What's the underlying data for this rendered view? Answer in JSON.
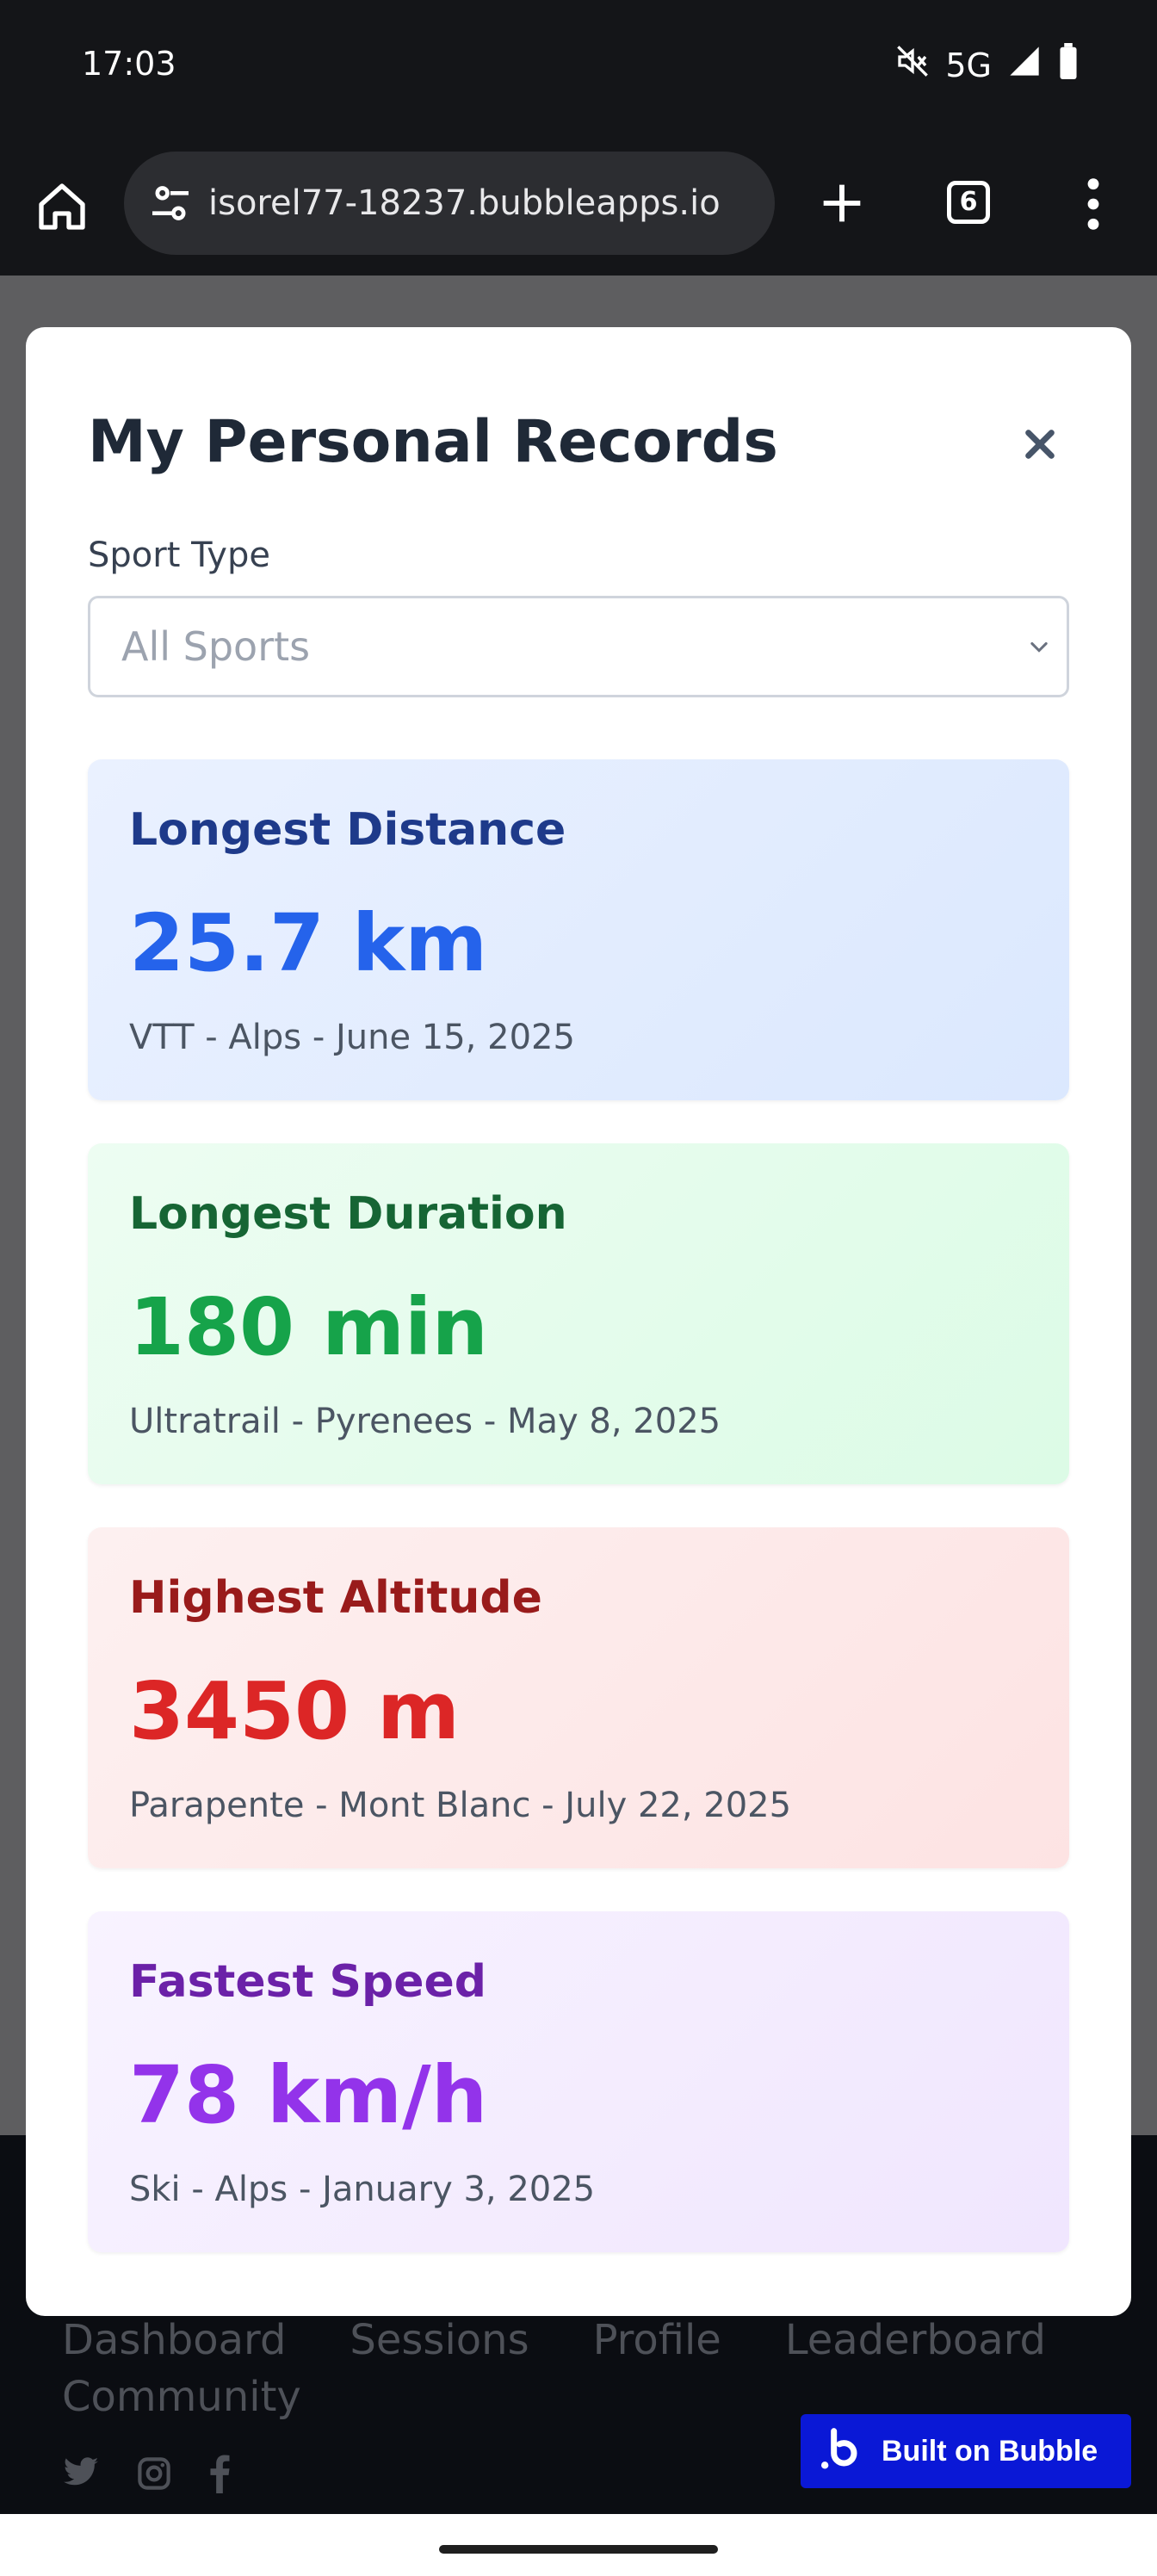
{
  "status_bar": {
    "time": "17:03",
    "network": "5G",
    "icons": [
      "mute-icon",
      "signal-icon",
      "battery-icon"
    ]
  },
  "browser": {
    "url": "isorel77-18237.bubbleapps.io",
    "tab_count": "6",
    "icons": [
      "home-icon",
      "tune-icon",
      "plus-icon",
      "tabs-icon",
      "more-vert-icon"
    ]
  },
  "modal": {
    "title": "My Personal Records",
    "close_icon": "close-icon",
    "filter": {
      "label": "Sport Type",
      "selected": "All Sports"
    },
    "records": [
      {
        "title": "Longest Distance",
        "value": "25.7 km",
        "meta": "VTT - Alps - June 15, 2025",
        "title_color": "#1e3a8a",
        "value_color": "#2563eb"
      },
      {
        "title": "Longest Duration",
        "value": "180 min",
        "meta": "Ultratrail - Pyrenees - May 8, 2025",
        "title_color": "#166534",
        "value_color": "#16a34a"
      },
      {
        "title": "Highest Altitude",
        "value": "3450 m",
        "meta": "Parapente - Mont Blanc - July 22, 2025",
        "title_color": "#991b1b",
        "value_color": "#dc2626"
      },
      {
        "title": "Fastest Speed",
        "value": "78 km/h",
        "meta": "Ski - Alps - January 3, 2025",
        "title_color": "#6b21a8",
        "value_color": "#9333ea"
      }
    ]
  },
  "footer": {
    "nav": [
      "Dashboard",
      "Sessions",
      "Profile",
      "Leaderboard",
      "Community"
    ],
    "social_icons": [
      "twitter-icon",
      "instagram-icon",
      "facebook-icon"
    ],
    "badge": "Built on Bubble"
  }
}
